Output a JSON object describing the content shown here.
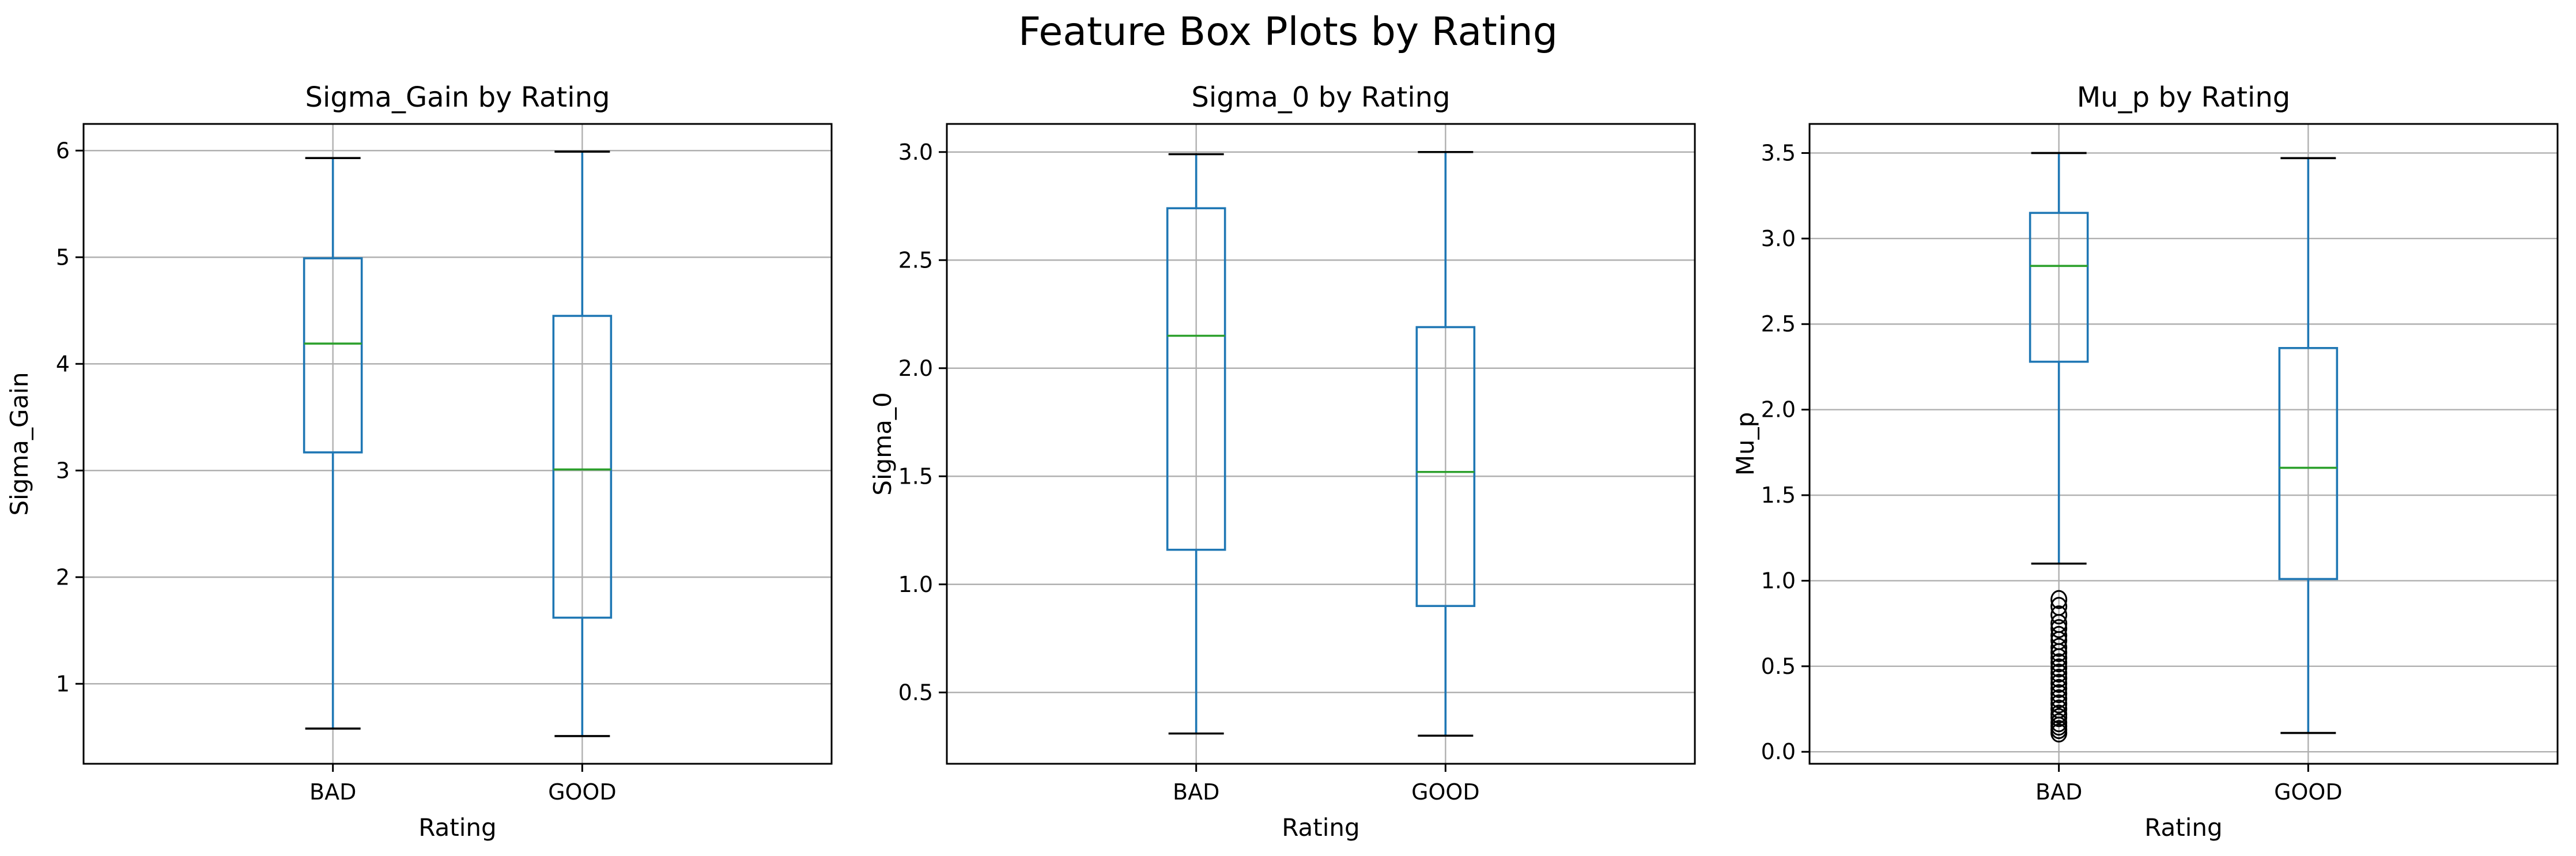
{
  "figure_title": "Feature Box Plots by Rating",
  "colors": {
    "box": "#1f77b4",
    "median": "#2ca02c",
    "whisker": "#1f77b4",
    "cap": "#000000",
    "flier": "#000000",
    "grid": "#b0b0b0",
    "axes": "#000000"
  },
  "chart_data": [
    {
      "type": "box",
      "title": "Sigma_Gain by Rating",
      "xlabel": "Rating",
      "ylabel": "Sigma_Gain",
      "categories": [
        "BAD",
        "GOOD"
      ],
      "ylim": [
        0.25,
        6.25
      ],
      "yticks": [
        1,
        2,
        3,
        4,
        5,
        6
      ],
      "ytick_labels": [
        "1",
        "2",
        "3",
        "4",
        "5",
        "6"
      ],
      "grid": true,
      "boxes": [
        {
          "category": "BAD",
          "whisker_low": 0.58,
          "q1": 3.17,
          "median": 4.19,
          "q3": 4.99,
          "whisker_high": 5.93,
          "outliers": []
        },
        {
          "category": "GOOD",
          "whisker_low": 0.51,
          "q1": 1.62,
          "median": 3.01,
          "q3": 4.45,
          "whisker_high": 5.99,
          "outliers": []
        }
      ]
    },
    {
      "type": "box",
      "title": "Sigma_0 by Rating",
      "xlabel": "Rating",
      "ylabel": "Sigma_0",
      "categories": [
        "BAD",
        "GOOD"
      ],
      "ylim": [
        0.17,
        3.13
      ],
      "yticks": [
        0.5,
        1.0,
        1.5,
        2.0,
        2.5,
        3.0
      ],
      "ytick_labels": [
        "0.5",
        "1.0",
        "1.5",
        "2.0",
        "2.5",
        "3.0"
      ],
      "grid": true,
      "boxes": [
        {
          "category": "BAD",
          "whisker_low": 0.31,
          "q1": 1.16,
          "median": 2.15,
          "q3": 2.74,
          "whisker_high": 2.99,
          "outliers": []
        },
        {
          "category": "GOOD",
          "whisker_low": 0.3,
          "q1": 0.9,
          "median": 1.52,
          "q3": 2.19,
          "whisker_high": 3.0,
          "outliers": []
        }
      ]
    },
    {
      "type": "box",
      "title": "Mu_p by Rating",
      "xlabel": "Rating",
      "ylabel": "Mu_p",
      "categories": [
        "BAD",
        "GOOD"
      ],
      "ylim": [
        -0.07,
        3.67
      ],
      "yticks": [
        0.0,
        0.5,
        1.0,
        1.5,
        2.0,
        2.5,
        3.0,
        3.5
      ],
      "ytick_labels": [
        "0.0",
        "0.5",
        "1.0",
        "1.5",
        "2.0",
        "2.5",
        "3.0",
        "3.5"
      ],
      "grid": true,
      "boxes": [
        {
          "category": "BAD",
          "whisker_low": 1.1,
          "q1": 2.28,
          "median": 2.84,
          "q3": 3.15,
          "whisker_high": 3.5,
          "outliers": [
            0.89,
            0.85,
            0.8,
            0.75,
            0.72,
            0.68,
            0.65,
            0.61,
            0.58,
            0.55,
            0.52,
            0.49,
            0.46,
            0.43,
            0.4,
            0.37,
            0.34,
            0.31,
            0.28,
            0.25,
            0.22,
            0.2,
            0.17,
            0.15,
            0.13,
            0.11
          ]
        },
        {
          "category": "GOOD",
          "whisker_low": 0.11,
          "q1": 1.01,
          "median": 1.66,
          "q3": 2.36,
          "whisker_high": 3.47,
          "outliers": []
        }
      ]
    }
  ]
}
